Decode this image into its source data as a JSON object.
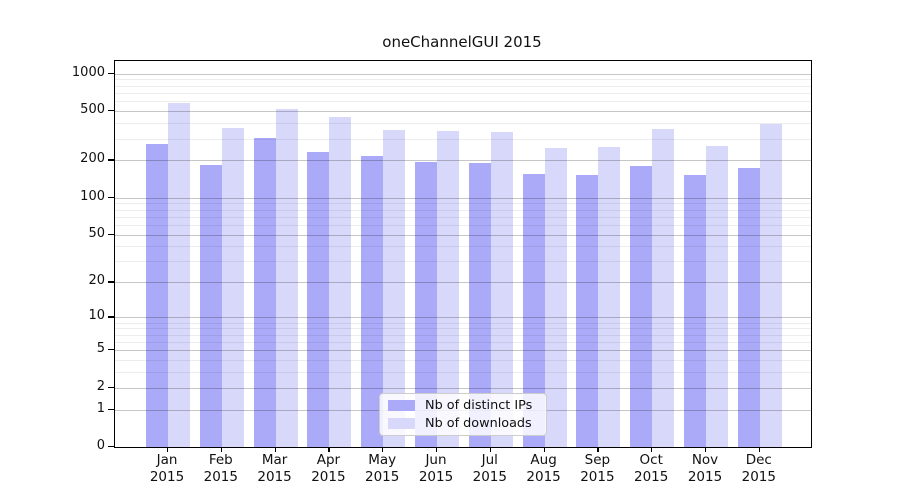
{
  "chart_data": {
    "type": "bar",
    "title": "oneChannelGUI 2015",
    "categories": [
      "Jan",
      "Feb",
      "Mar",
      "Apr",
      "May",
      "Jun",
      "Jul",
      "Aug",
      "Sep",
      "Oct",
      "Nov",
      "Dec"
    ],
    "year_label": "2015",
    "series": [
      {
        "name": "Nb of distinct IPs",
        "color": "#aaaaf8",
        "values": [
          273,
          184,
          302,
          234,
          217,
          195,
          192,
          154,
          152,
          180,
          153,
          173
        ]
      },
      {
        "name": "Nb of downloads",
        "color": "#d8d8fa",
        "values": [
          585,
          366,
          524,
          449,
          350,
          345,
          338,
          254,
          258,
          359,
          262,
          391
        ]
      }
    ],
    "xlabel": "",
    "ylabel": "",
    "y_scale": "log1p",
    "ylim": [
      0,
      1000
    ],
    "y_ticks": [
      0,
      1,
      2,
      5,
      10,
      20,
      50,
      100,
      200,
      500,
      1000
    ],
    "y_minor_ticks": [
      3,
      4,
      6,
      7,
      8,
      9,
      30,
      40,
      60,
      70,
      80,
      90,
      300,
      400,
      600,
      700,
      800,
      900
    ],
    "grid": true,
    "grid_position": "above-bars",
    "legend_position": "lower center",
    "colors": {
      "background": "#ffffff",
      "spine": "#000000",
      "grid_major": "rgba(0,0,0,0.22)",
      "grid_minor": "rgba(0,0,0,0.07)",
      "text": "#111111"
    }
  }
}
